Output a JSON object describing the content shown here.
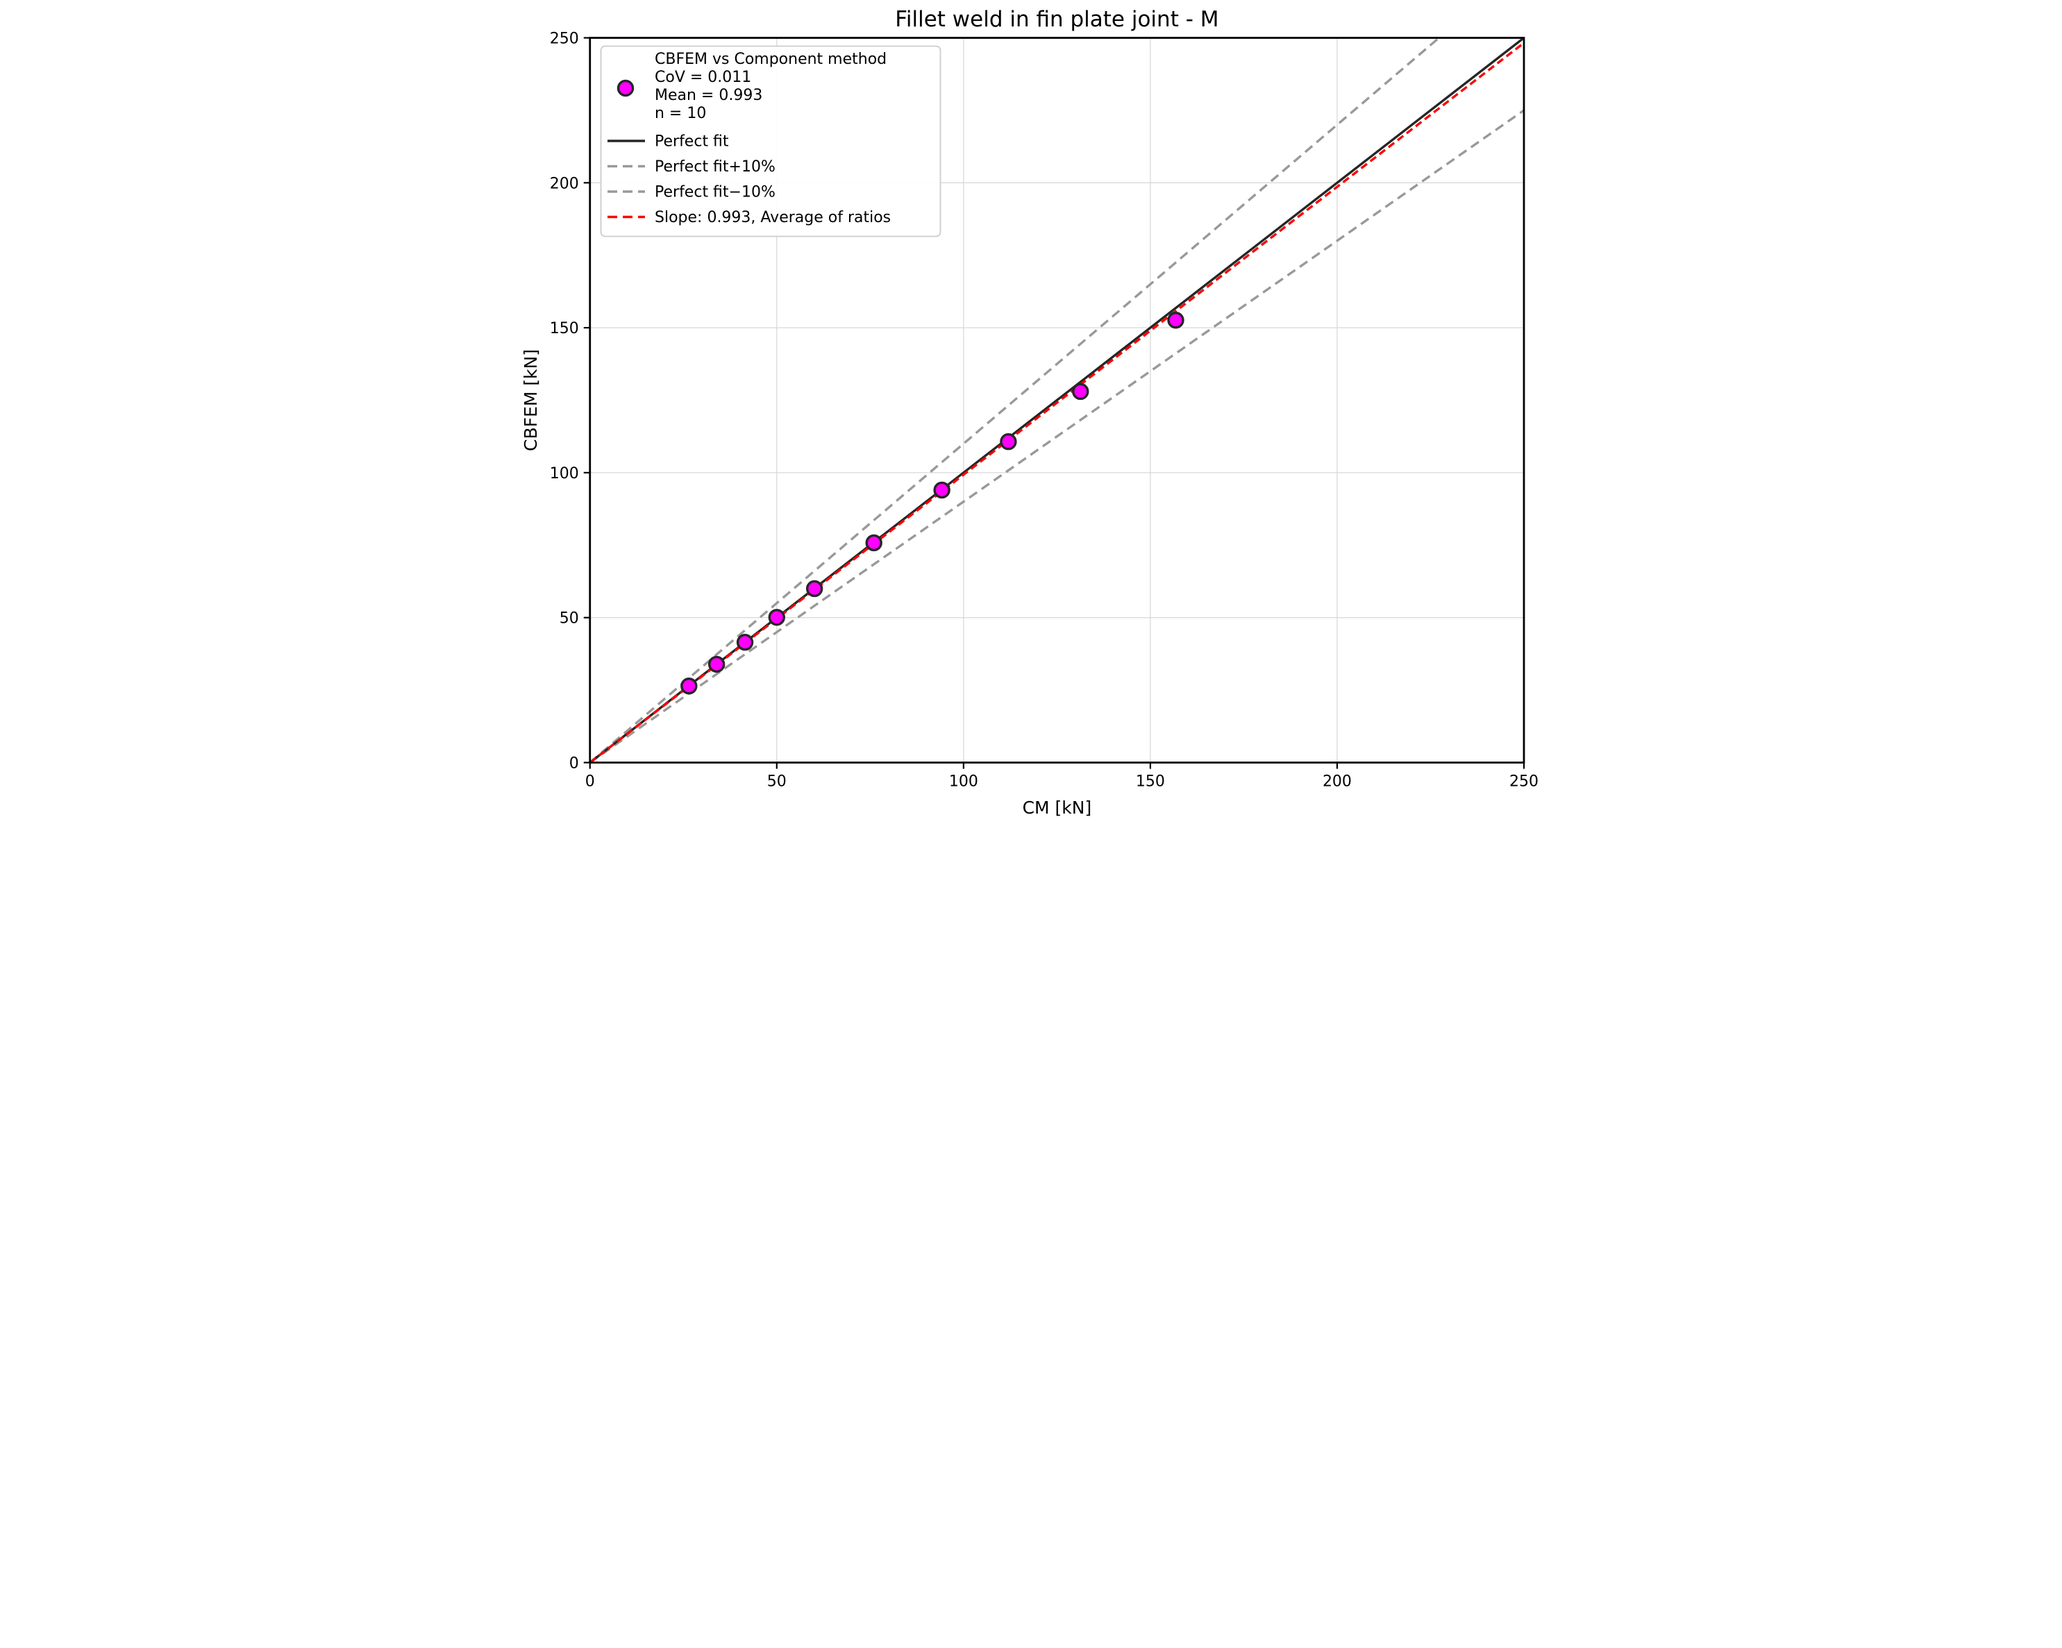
{
  "title": "Fillet weld in fin plate joint - M",
  "chart_data": {
    "type": "scatter",
    "title": "Fillet weld in fin plate joint - M",
    "xlabel": "CM [kN]",
    "ylabel": "CBFEM [kN]",
    "xlim": [
      0,
      250
    ],
    "ylim": [
      0,
      250
    ],
    "xticks": [
      0,
      50,
      100,
      150,
      200,
      250
    ],
    "yticks": [
      0,
      50,
      100,
      150,
      200,
      250
    ],
    "grid": true,
    "legend_position": "upper left",
    "series": [
      {
        "name": "CBFEM vs Component method",
        "type": "scatter",
        "marker": "circle",
        "color": "#ff00ff",
        "edge_color": "#262626",
        "points": [
          {
            "x": 26.5,
            "y": 26.4
          },
          {
            "x": 33.9,
            "y": 33.9
          },
          {
            "x": 41.5,
            "y": 41.5
          },
          {
            "x": 50.0,
            "y": 50.1
          },
          {
            "x": 60.1,
            "y": 60.0
          },
          {
            "x": 76.0,
            "y": 75.8
          },
          {
            "x": 94.2,
            "y": 94.0
          },
          {
            "x": 112.0,
            "y": 110.7
          },
          {
            "x": 131.3,
            "y": 128.0
          },
          {
            "x": 156.8,
            "y": 152.6
          }
        ]
      }
    ],
    "lines": [
      {
        "name": "Perfect fit",
        "slope": 1.0,
        "style": "solid",
        "color": "#262626"
      },
      {
        "name": "Perfect fit+10%",
        "slope": 1.1,
        "style": "dashed",
        "color": "#999999"
      },
      {
        "name": "Perfect fit−10%",
        "slope": 0.9,
        "style": "dashed",
        "color": "#999999"
      },
      {
        "name": "Slope: 0.993, Average of ratios",
        "slope": 0.993,
        "style": "dashed",
        "color": "#ff0000"
      }
    ],
    "legend": {
      "scatter_label_lines": [
        "CBFEM vs Component method",
        "CoV = 0.011",
        "Mean = 0.993",
        "n = 10"
      ],
      "stats": {
        "CoV": "0.011",
        "Mean": "0.993",
        "n": "10"
      }
    }
  },
  "colors": {
    "background": "#ffffff",
    "grid": "#d9d9d9",
    "spine": "#000000",
    "marker_fill": "#ff00ff",
    "marker_edge": "#262626",
    "perfect_fit": "#262626",
    "band_gray": "#999999",
    "slope_red": "#ff0000",
    "legend_border": "#cccccc"
  }
}
